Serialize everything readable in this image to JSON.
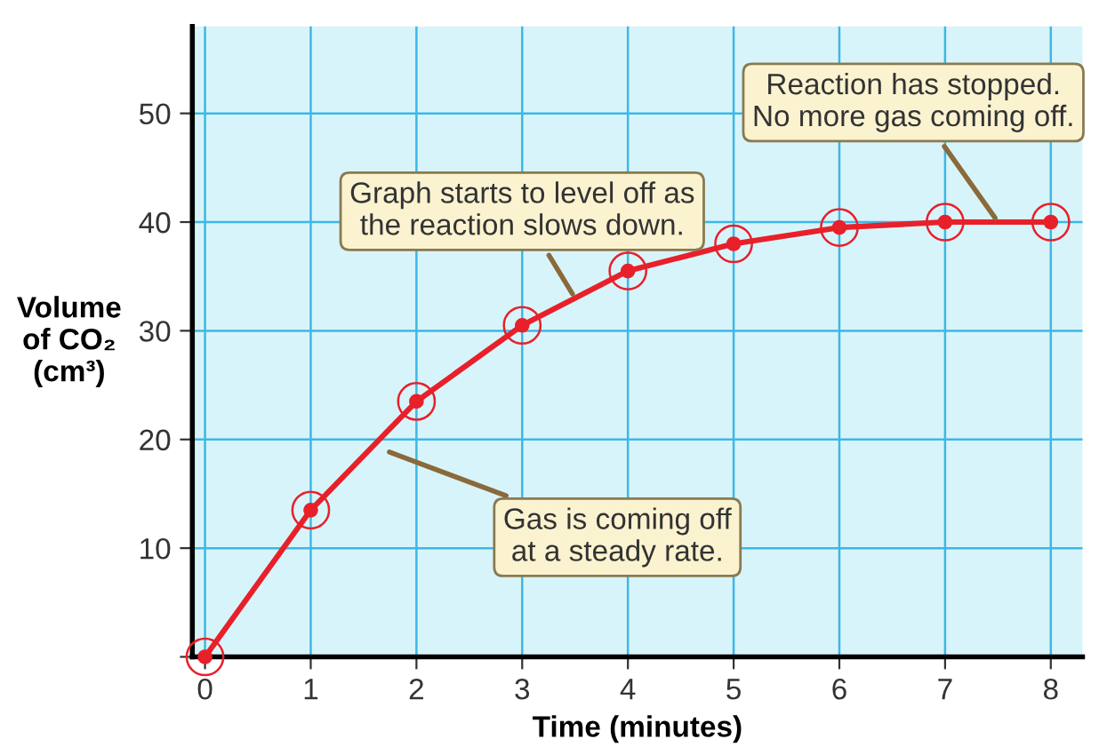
{
  "chart_data": {
    "type": "line",
    "xlabel": "Time (minutes)",
    "ylabel": "Volume\nof CO₂\n(cm³)",
    "x": [
      0,
      1,
      2,
      3,
      4,
      5,
      6,
      7,
      8
    ],
    "series": [
      {
        "color": "#e8202a",
        "values": [
          0,
          13.5,
          23.5,
          30.5,
          35.5,
          38,
          39.5,
          40,
          40
        ]
      }
    ],
    "xlim": [
      -0.12,
      8.3
    ],
    "ylim": [
      0,
      58
    ],
    "xticks": [
      0,
      1,
      2,
      3,
      4,
      5,
      6,
      7,
      8
    ],
    "yticks": [
      {
        "value": 0,
        "label": null
      },
      10,
      20,
      30,
      40,
      50
    ],
    "grid": true,
    "marker": "circle",
    "line_style": "solid",
    "annotations": [
      {
        "text": "Gas is coming off\nat a steady rate.",
        "x": 1.7,
        "y": 19
      },
      {
        "text": "Graph starts to level off as\nthe reaction slows down.",
        "x": 3.5,
        "y": 33
      },
      {
        "text": "Reaction has stopped.\nNo more gas coming off.",
        "x": 7.5,
        "y": 40
      }
    ]
  }
}
